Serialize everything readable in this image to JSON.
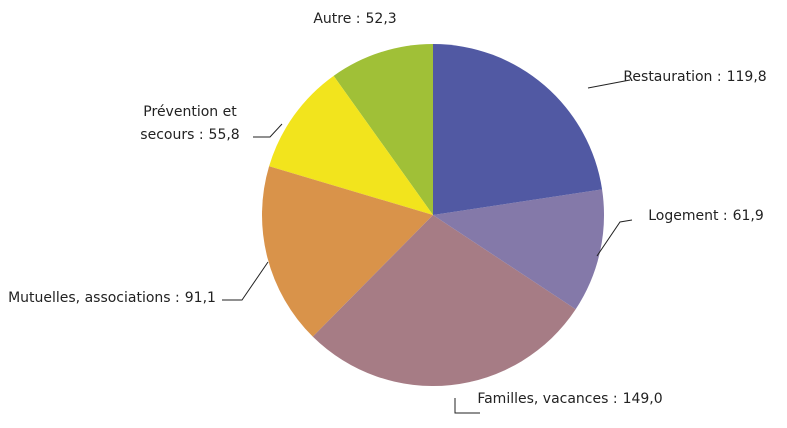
{
  "chart_data": {
    "type": "pie",
    "categories": [
      "Restauration :",
      "Logement :",
      "Familles, vacances :",
      "Mutuelles, associations :",
      "Prévention et secours :",
      "Autre :"
    ],
    "values": [
      119.8,
      61.9,
      149.0,
      91.1,
      55.8,
      52.3
    ],
    "value_labels": [
      "119,8",
      "61,9",
      "149,0",
      "91,1",
      "55,8",
      "52,3"
    ],
    "colors": [
      "#5159a3",
      "#8479a9",
      "#a67c85",
      "#d9934a",
      "#f2e41d",
      "#a0c037"
    ]
  }
}
